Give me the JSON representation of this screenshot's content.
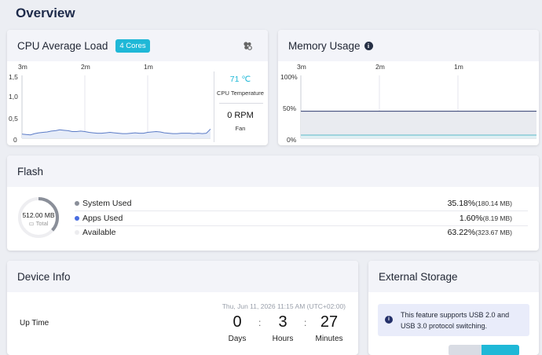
{
  "page": {
    "title": "Overview"
  },
  "cpu": {
    "title": "CPU Average Load",
    "cores": "4 Cores",
    "time_labels": [
      "3m",
      "2m",
      "1m"
    ],
    "y_labels": [
      "1,5",
      "1,0",
      "0,5",
      "0"
    ],
    "temperature": "71 ℃",
    "temperature_label": "CPU Temperature",
    "fan": "0 RPM",
    "fan_label": "Fan",
    "series_color": "#5b7bc6",
    "chart_data": {
      "type": "area",
      "ylim": [
        0,
        1.5
      ],
      "values": [
        0.1,
        0.09,
        0.08,
        0.11,
        0.13,
        0.14,
        0.15,
        0.17,
        0.18,
        0.2,
        0.19,
        0.18,
        0.16,
        0.16,
        0.17,
        0.16,
        0.14,
        0.13,
        0.12,
        0.12,
        0.13,
        0.14,
        0.13,
        0.12,
        0.11,
        0.11,
        0.12,
        0.13,
        0.12,
        0.12,
        0.14,
        0.15,
        0.16,
        0.15,
        0.13,
        0.12,
        0.11,
        0.11,
        0.12,
        0.12,
        0.12,
        0.11,
        0.12,
        0.11,
        0.12,
        0.22
      ]
    }
  },
  "memory": {
    "title": "Memory Usage",
    "time_labels": [
      "3m",
      "2m",
      "1m"
    ],
    "y_labels": [
      "100%",
      "50%",
      "0%"
    ],
    "chart_data": {
      "type": "area",
      "ylim": [
        0,
        100
      ],
      "series": [
        {
          "values": [
            43,
            43,
            43,
            43,
            43,
            43,
            43,
            43,
            43,
            43,
            43,
            43,
            43,
            43,
            43,
            43,
            43,
            43,
            43,
            43,
            43,
            43,
            43,
            43,
            43,
            43,
            43,
            43,
            43,
            43,
            43,
            43,
            43,
            43,
            43,
            43,
            43,
            43,
            43,
            43
          ],
          "color": "#2e3a6e"
        },
        {
          "values": [
            5,
            5,
            5,
            5,
            5,
            5,
            5,
            5,
            5,
            5,
            5,
            5,
            5,
            5,
            5,
            5,
            5,
            5,
            5,
            5,
            5,
            5,
            5,
            5,
            5,
            5,
            5,
            5,
            5,
            5,
            5,
            5,
            5,
            5,
            5,
            5,
            5,
            5,
            5,
            5
          ],
          "color": "#5ab8c9"
        }
      ]
    }
  },
  "flash": {
    "title": "Flash",
    "total": "512.00 MB",
    "total_label": "Total",
    "used_fraction": 0.368,
    "rows": [
      {
        "label": "System Used",
        "pct": "35.18%",
        "size": "(180.14 MB)",
        "color": "#8a8f99"
      },
      {
        "label": "Apps Used",
        "pct": "1.60%",
        "size": "(8.19 MB)",
        "color": "#4a6ee0"
      },
      {
        "label": "Available",
        "pct": "63.22%",
        "size": "(323.67 MB)",
        "color": "#ececef"
      }
    ]
  },
  "device": {
    "title": "Device Info",
    "datetime": "Thu, Jun 11, 2026 11:15 AM (UTC+02:00)",
    "uptime_label": "Up Time",
    "days": "0",
    "hours": "3",
    "minutes": "27",
    "sep": ":",
    "days_label": "Days",
    "hours_label": "Hours",
    "minutes_label": "Minutes"
  },
  "storage": {
    "title": "External Storage",
    "notice": "This feature supports USB 2.0 and USB 3.0 protocol switching."
  },
  "colors": {
    "accent": "#1fb8d7",
    "heading": "#1d2a4a"
  }
}
